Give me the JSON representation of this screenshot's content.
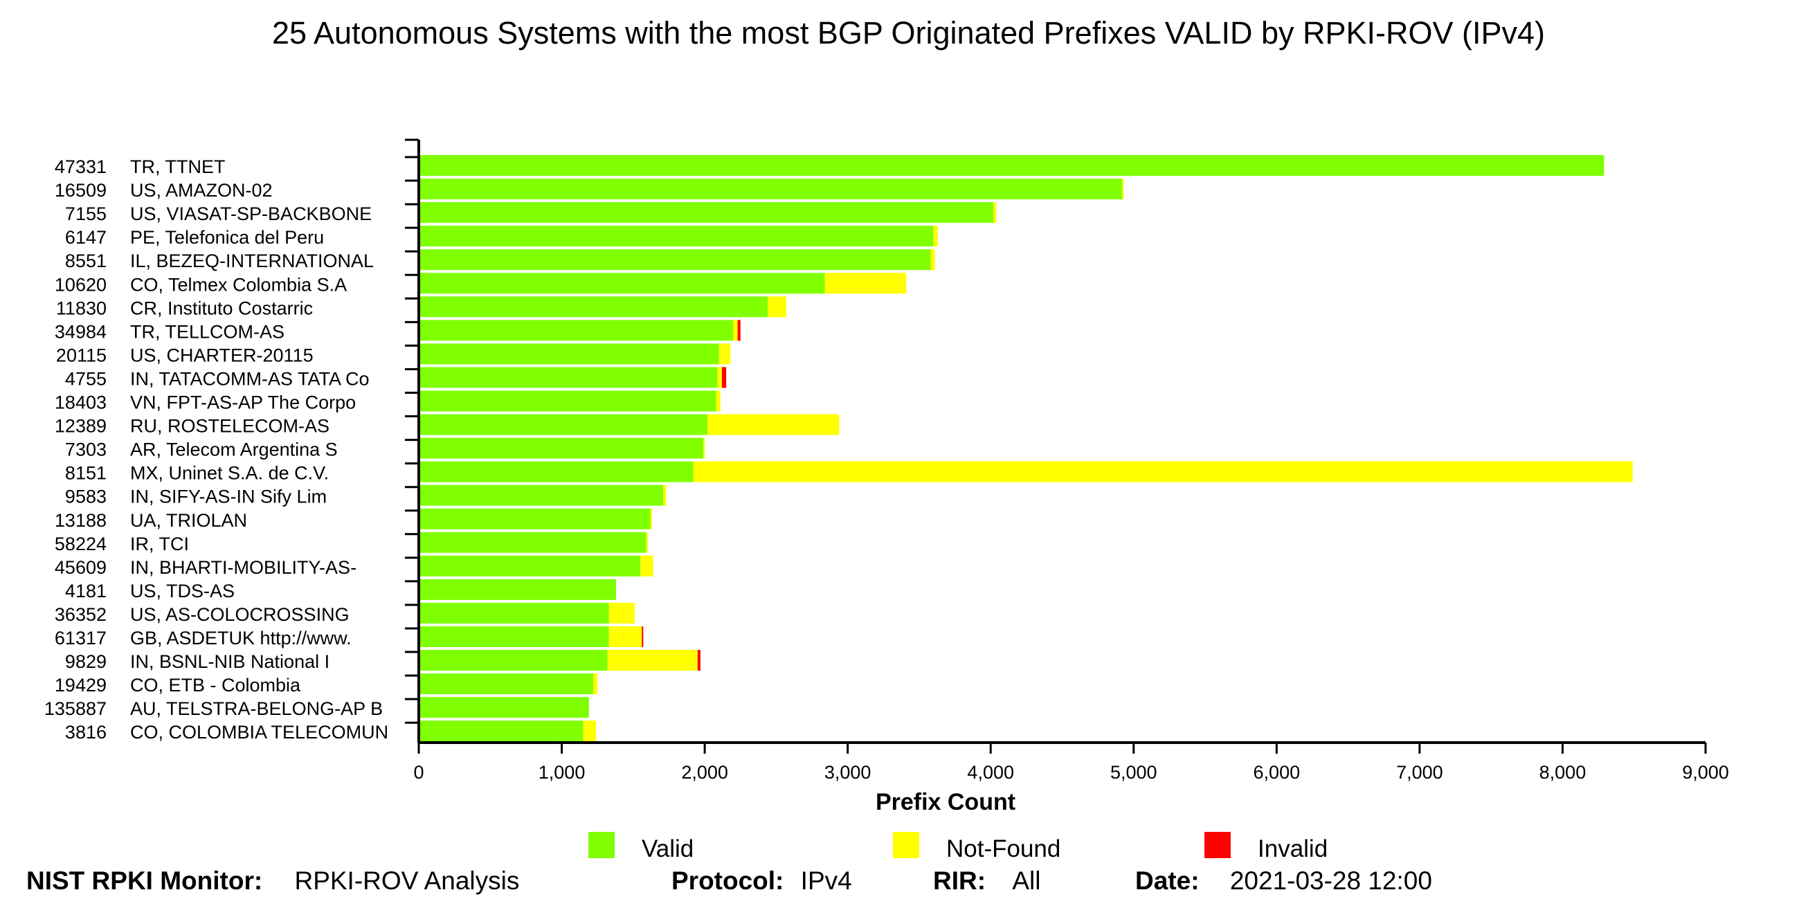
{
  "chart_data": {
    "type": "bar",
    "orientation": "horizontal",
    "stacked": true,
    "title": "25 Autonomous Systems with the most BGP Originated Prefixes VALID by RPKI-ROV (IPv4)",
    "xlabel": "Prefix Count",
    "ylabel": "",
    "xlim": [
      0,
      9000
    ],
    "xticks": [
      0,
      1000,
      2000,
      3000,
      4000,
      5000,
      6000,
      7000,
      8000,
      9000
    ],
    "xtick_labels": [
      "0",
      "1,000",
      "2,000",
      "3,000",
      "4,000",
      "5,000",
      "6,000",
      "7,000",
      "8,000",
      "9,000"
    ],
    "grid": false,
    "legend_position": "bottom",
    "categories": [
      {
        "asn": "47331",
        "name": "TR, TTNET"
      },
      {
        "asn": "16509",
        "name": "US, AMAZON-02"
      },
      {
        "asn": "7155",
        "name": "US, VIASAT-SP-BACKBONE"
      },
      {
        "asn": "6147",
        "name": "PE, Telefonica del Peru"
      },
      {
        "asn": "8551",
        "name": "IL, BEZEQ-INTERNATIONAL"
      },
      {
        "asn": "10620",
        "name": "CO, Telmex Colombia S.A"
      },
      {
        "asn": "11830",
        "name": "CR, Instituto Costarric"
      },
      {
        "asn": "34984",
        "name": "TR, TELLCOM-AS"
      },
      {
        "asn": "20115",
        "name": "US, CHARTER-20115"
      },
      {
        "asn": "4755",
        "name": "IN, TATACOMM-AS TATA Co"
      },
      {
        "asn": "18403",
        "name": "VN, FPT-AS-AP The Corpo"
      },
      {
        "asn": "12389",
        "name": "RU, ROSTELECOM-AS"
      },
      {
        "asn": "7303",
        "name": "AR, Telecom Argentina S"
      },
      {
        "asn": "8151",
        "name": "MX, Uninet S.A. de C.V."
      },
      {
        "asn": "9583",
        "name": "IN, SIFY-AS-IN Sify Lim"
      },
      {
        "asn": "13188",
        "name": "UA, TRIOLAN"
      },
      {
        "asn": "58224",
        "name": "IR, TCI"
      },
      {
        "asn": "45609",
        "name": "IN, BHARTI-MOBILITY-AS-"
      },
      {
        "asn": "4181",
        "name": "US, TDS-AS"
      },
      {
        "asn": "36352",
        "name": "US, AS-COLOCROSSING"
      },
      {
        "asn": "61317",
        "name": "GB, ASDETUK http://www."
      },
      {
        "asn": "9829",
        "name": "IN, BSNL-NIB National I"
      },
      {
        "asn": "19429",
        "name": "CO, ETB - Colombia"
      },
      {
        "asn": "135887",
        "name": "AU, TELSTRA-BELONG-AP B"
      },
      {
        "asn": "3816",
        "name": "CO, COLOMBIA TELECOMUN"
      }
    ],
    "series": [
      {
        "name": "Valid",
        "color": "#80ff00",
        "values": [
          8290,
          4920,
          4020,
          3600,
          3580,
          2840,
          2440,
          2200,
          2100,
          2090,
          2080,
          2020,
          1990,
          1920,
          1710,
          1620,
          1590,
          1550,
          1380,
          1330,
          1330,
          1320,
          1220,
          1190,
          1150
        ]
      },
      {
        "name": "Not-Found",
        "color": "#ffff00",
        "values": [
          0,
          10,
          20,
          30,
          30,
          570,
          130,
          30,
          80,
          30,
          30,
          920,
          10,
          6570,
          20,
          10,
          10,
          90,
          0,
          180,
          230,
          630,
          30,
          0,
          90
        ]
      },
      {
        "name": "Invalid",
        "color": "#ff0000",
        "values": [
          0,
          0,
          0,
          0,
          0,
          0,
          0,
          20,
          0,
          30,
          0,
          0,
          0,
          0,
          0,
          0,
          0,
          0,
          0,
          0,
          10,
          20,
          0,
          0,
          0
        ]
      }
    ]
  },
  "footer": {
    "monitor_label": "NIST RPKI Monitor:",
    "monitor_value": "RPKI-ROV Analysis",
    "protocol_label": "Protocol:",
    "protocol_value": "IPv4",
    "rir_label": "RIR:",
    "rir_value": "All",
    "date_label": "Date:",
    "date_value": "2021-03-28 12:00"
  }
}
